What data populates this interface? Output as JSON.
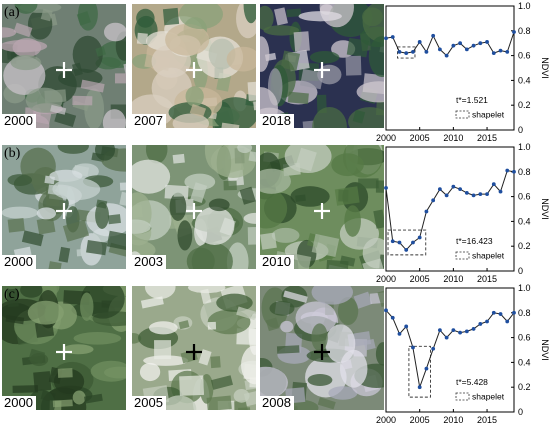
{
  "colors": {
    "line": "#222222",
    "marker": "#1f4e9e",
    "shapelet_box": "#333333"
  },
  "rows": [
    {
      "label": "(a)",
      "years": [
        "2000",
        "2007",
        "2018"
      ],
      "cross_colors": [
        "#ffffff",
        "#ffffff",
        "#ffffff"
      ],
      "tiles": [
        {
          "base": "#6f7f73",
          "patches": [
            "#b9a6b0",
            "#3f6a45",
            "#8a9a88",
            "#c9c3c9",
            "#2f4a33"
          ]
        },
        {
          "base": "#b3a88a",
          "patches": [
            "#2e5b3a",
            "#d9cfc0",
            "#8aa27a",
            "#c8b79a",
            "#e6e1d8"
          ]
        },
        {
          "base": "#2b3150",
          "patches": [
            "#4a6b43",
            "#cfc7cf",
            "#9a9aa6",
            "#2f5a38",
            "#e0dce3"
          ]
        }
      ],
      "note": "t*=1.521",
      "shapelet_label": "shapelet"
    },
    {
      "label": "(b)",
      "years": [
        "2000",
        "2003",
        "2010"
      ],
      "cross_colors": [
        "#ffffff",
        "#ffffff",
        "#ffffff"
      ],
      "tiles": [
        {
          "base": "#8fa39a",
          "patches": [
            "#2f4c2f",
            "#c6d1cf",
            "#58704f",
            "#d8dfe2",
            "#3c5a3a"
          ]
        },
        {
          "base": "#7d9476",
          "patches": [
            "#2f4a2c",
            "#c3cfc2",
            "#9db08f",
            "#e3e6e2",
            "#4f6d45"
          ]
        },
        {
          "base": "#6e8d5e",
          "patches": [
            "#2c4a2a",
            "#a7b8a0",
            "#557a45",
            "#c4cec0",
            "#3b5c34"
          ]
        }
      ],
      "note": "t*=16.423",
      "shapelet_label": "shapelet"
    },
    {
      "label": "(c)",
      "years": [
        "2000",
        "2005",
        "2008"
      ],
      "cross_colors": [
        "#ffffff",
        "#000000",
        "#000000"
      ],
      "tiles": [
        {
          "base": "#4f6f45",
          "patches": [
            "#2b4527",
            "#6f8d5f",
            "#3c5a34",
            "#86a071",
            "#24391f"
          ]
        },
        {
          "base": "#9aa98c",
          "patches": [
            "#e8ebe4",
            "#3f5d36",
            "#c6cfbf",
            "#5f7b50",
            "#f1f2ee"
          ]
        },
        {
          "base": "#7c8a78",
          "patches": [
            "#c9c6d6",
            "#3a5734",
            "#a8a9b9",
            "#5b7450",
            "#e2e0ea"
          ]
        }
      ],
      "note": "t*=5.428",
      "shapelet_label": "shapelet"
    }
  ],
  "chart_data": [
    {
      "type": "line",
      "ylabel": "NDVI",
      "xlim": [
        2000,
        2019
      ],
      "ylim": [
        0,
        1.0
      ],
      "xticks": [
        "2000",
        "2005",
        "2010",
        "2015"
      ],
      "yticks": [
        "0",
        "0.2",
        "0.4",
        "0.6",
        "0.8",
        "1.0"
      ],
      "x": [
        2000,
        2001,
        2002,
        2003,
        2004,
        2005,
        2006,
        2007,
        2008,
        2009,
        2010,
        2011,
        2012,
        2013,
        2014,
        2015,
        2016,
        2017,
        2018,
        2019
      ],
      "y": [
        0.74,
        0.75,
        0.63,
        0.62,
        0.63,
        0.71,
        0.63,
        0.76,
        0.65,
        0.6,
        0.68,
        0.7,
        0.65,
        0.68,
        0.7,
        0.71,
        0.62,
        0.64,
        0.63,
        0.79
      ],
      "shapelet": {
        "x": [
          2001.7,
          2004.3
        ],
        "y": [
          0.58,
          0.67
        ]
      }
    },
    {
      "type": "line",
      "ylabel": "NDVI",
      "xlim": [
        2000,
        2019
      ],
      "ylim": [
        0,
        1.0
      ],
      "xticks": [
        "2000",
        "2005",
        "2010",
        "2015"
      ],
      "yticks": [
        "0",
        "0.2",
        "0.4",
        "0.6",
        "0.8",
        "1.0"
      ],
      "x": [
        2000,
        2001,
        2002,
        2003,
        2004,
        2005,
        2006,
        2007,
        2008,
        2009,
        2010,
        2011,
        2012,
        2013,
        2014,
        2015,
        2016,
        2017,
        2018,
        2019
      ],
      "y": [
        0.67,
        0.24,
        0.23,
        0.17,
        0.23,
        0.27,
        0.48,
        0.57,
        0.66,
        0.61,
        0.68,
        0.66,
        0.63,
        0.61,
        0.62,
        0.62,
        0.7,
        0.64,
        0.81,
        0.8
      ],
      "shapelet": {
        "x": [
          2000.3,
          2005.9
        ],
        "y": [
          0.13,
          0.33
        ]
      }
    },
    {
      "type": "line",
      "ylabel": "NDVI",
      "xlim": [
        2000,
        2019
      ],
      "ylim": [
        0,
        1.0
      ],
      "xticks": [
        "2000",
        "2005",
        "2010",
        "2015"
      ],
      "yticks": [
        "0",
        "0.2",
        "0.4",
        "0.6",
        "0.8",
        "1.0"
      ],
      "x": [
        2000,
        2001,
        2002,
        2003,
        2004,
        2005,
        2006,
        2007,
        2008,
        2009,
        2010,
        2011,
        2012,
        2013,
        2014,
        2015,
        2016,
        2017,
        2018,
        2019
      ],
      "y": [
        0.82,
        0.76,
        0.63,
        0.69,
        0.52,
        0.2,
        0.35,
        0.51,
        0.66,
        0.6,
        0.66,
        0.64,
        0.65,
        0.67,
        0.71,
        0.73,
        0.8,
        0.79,
        0.73,
        0.8
      ],
      "shapelet": {
        "x": [
          2003.4,
          2006.6
        ],
        "y": [
          0.12,
          0.53
        ]
      }
    }
  ]
}
